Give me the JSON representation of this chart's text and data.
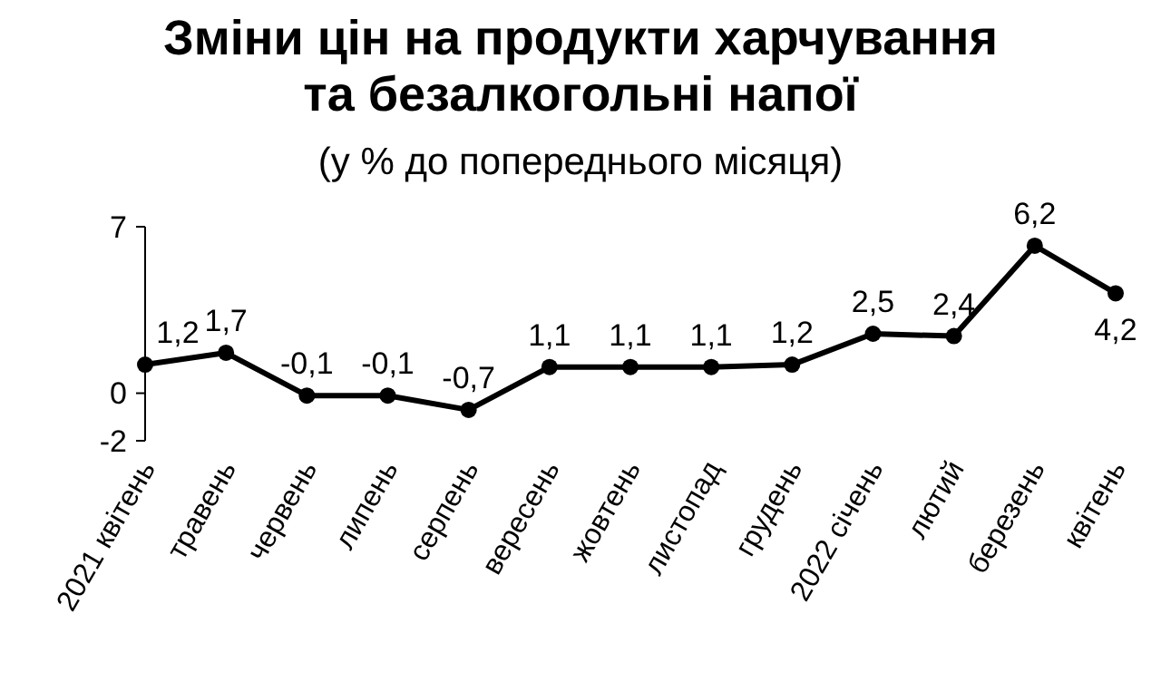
{
  "chart_data": {
    "type": "line",
    "title": "Зміни цін на продукти харчування та безалкогольні напої",
    "subtitle": "(у % до попереднього місяця)",
    "categories": [
      "2021 квітень",
      "травень",
      "червень",
      "липень",
      "серпень",
      "вересень",
      "жовтень",
      "листопад",
      "грудень",
      "2022 січень",
      "лютий",
      "березень",
      "квітень"
    ],
    "series": [
      {
        "color": "#000000",
        "values": [
          1.2,
          1.7,
          -0.1,
          -0.1,
          -0.7,
          1.1,
          1.1,
          1.1,
          1.2,
          2.5,
          2.4,
          6.2,
          4.2
        ],
        "value_labels": [
          "1,2",
          "1,7",
          "-0,1",
          "-0,1",
          "-0,7",
          "1,1",
          "1,1",
          "1,1",
          "1,2",
          "2,5",
          "2,4",
          "6,2",
          "4,2"
        ]
      }
    ],
    "ylim": [
      -2,
      7
    ],
    "yticks": [
      -2,
      0,
      7
    ],
    "marker": "circle",
    "line_style": "solid"
  }
}
